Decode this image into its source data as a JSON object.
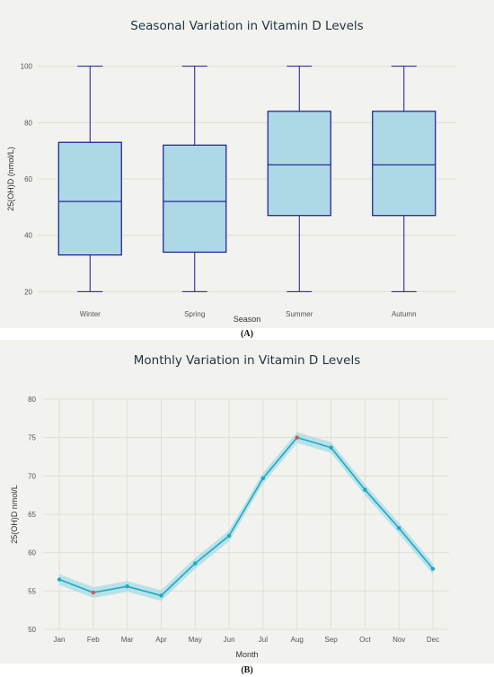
{
  "chart_data": [
    {
      "type": "box",
      "title": "Seasonal Variation in Vitamin D Levels",
      "xlabel": "Season",
      "ylabel": "25(OH)D (nmol/L)",
      "categories": [
        "Winter",
        "Spring",
        "Summer",
        "Autumn"
      ],
      "boxes": [
        {
          "min": 20,
          "q1": 33,
          "median": 52,
          "q3": 73,
          "max": 100
        },
        {
          "min": 20,
          "q1": 34,
          "median": 52,
          "q3": 72,
          "max": 100
        },
        {
          "min": 20,
          "q1": 47,
          "median": 65,
          "q3": 84,
          "max": 100
        },
        {
          "min": 20,
          "q1": 47,
          "median": 65,
          "q3": 84,
          "max": 100
        }
      ],
      "ylim": [
        15,
        105
      ],
      "yticks": [
        20,
        40,
        60,
        80,
        100
      ],
      "grid": true,
      "colors": {
        "fill": "#add8e6",
        "stroke": "#1a1a8c"
      }
    },
    {
      "type": "line",
      "title": "Monthly Variation in Vitamin D Levels",
      "xlabel": "Month",
      "ylabel": "25(OH)D nmol/L",
      "categories": [
        "Jan",
        "Feb",
        "Mar",
        "Apr",
        "May",
        "Jun",
        "Jul",
        "Aug",
        "Sep",
        "Oct",
        "Nov",
        "Dec"
      ],
      "values": [
        56.5,
        54.8,
        55.6,
        54.4,
        58.6,
        62.2,
        69.7,
        75.0,
        73.7,
        68.2,
        63.2,
        57.9
      ],
      "band_halfwidth": 0.7,
      "highlight_indices": [
        1,
        7
      ],
      "ylim": [
        50,
        80
      ],
      "yticks": [
        50,
        55,
        60,
        65,
        70,
        75,
        80
      ],
      "grid": true,
      "colors": {
        "line": "#1fa8c2",
        "band": "#a9dde6",
        "marker": "#1fa8c2",
        "highlight": "#d9534f"
      }
    }
  ],
  "captions": {
    "a": "(A)",
    "b": "(B)"
  }
}
